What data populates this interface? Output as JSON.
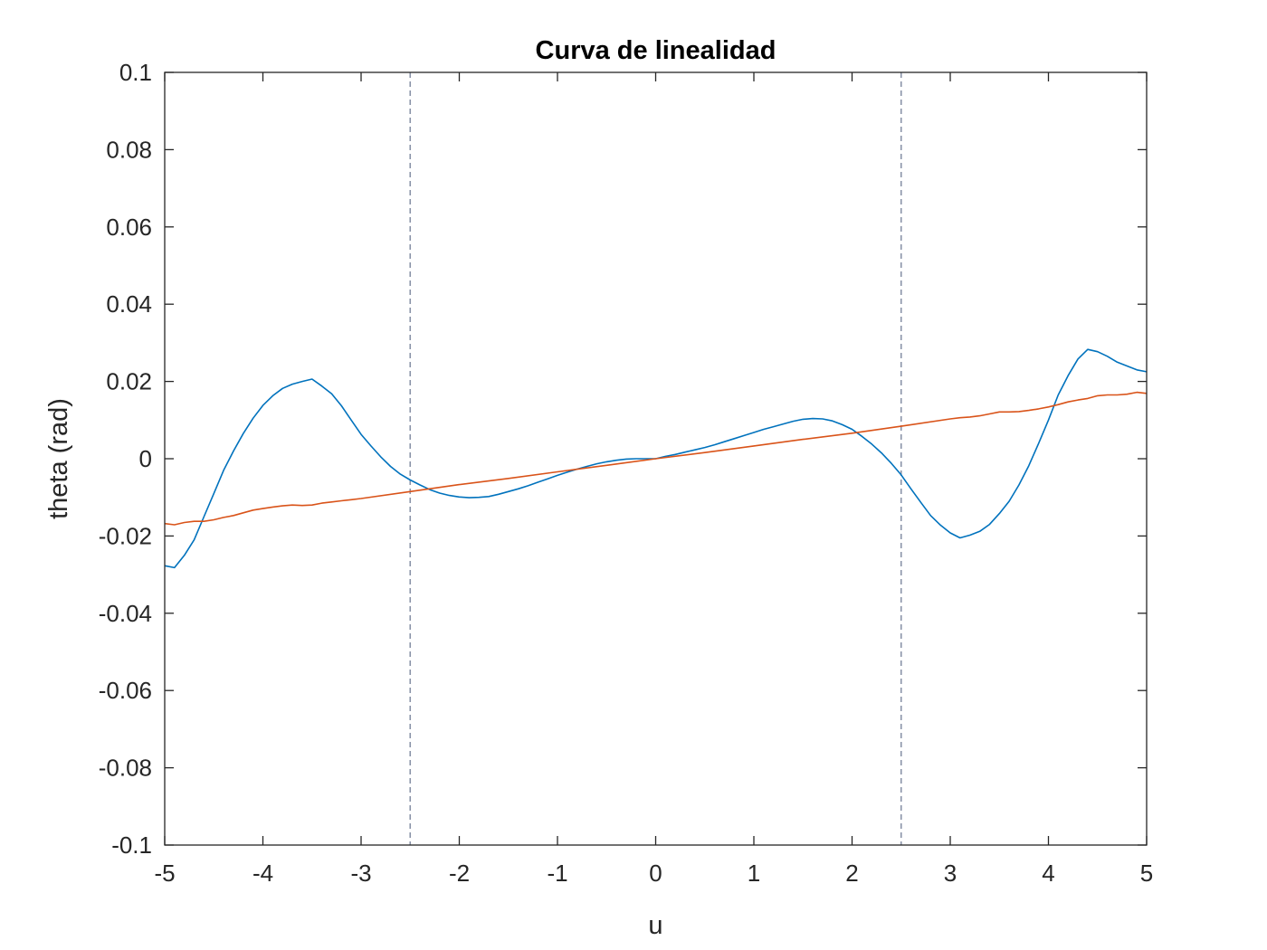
{
  "chart_data": {
    "type": "line",
    "title": "Curva de linealidad",
    "xlabel": "u",
    "ylabel": "theta (rad)",
    "xlim": [
      -5,
      5
    ],
    "ylim": [
      -0.1,
      0.1
    ],
    "xticks": [
      "-5",
      "-4",
      "-3",
      "-2",
      "-1",
      "0",
      "1",
      "2",
      "3",
      "4",
      "5"
    ],
    "yticks": [
      "-0.1",
      "-0.08",
      "-0.06",
      "-0.04",
      "-0.02",
      "0",
      "0.02",
      "0.04",
      "0.06",
      "0.08",
      "0.1"
    ],
    "grid": false,
    "vlines": [
      {
        "x": -2.5,
        "style": "dashed",
        "color": "#8a93a8"
      },
      {
        "x": 2.5,
        "style": "dashed",
        "color": "#8a93a8"
      }
    ],
    "series": [
      {
        "color": "#0072bd",
        "x": [
          -5,
          -4.9,
          -4.8,
          -4.7,
          -4.6,
          -4.5,
          -4.4,
          -4.3,
          -4.2,
          -4.1,
          -4.0,
          -3.9,
          -3.8,
          -3.7,
          -3.6,
          -3.5,
          -3.4,
          -3.3,
          -3.2,
          -3.1,
          -3.0,
          -2.9,
          -2.8,
          -2.7,
          -2.6,
          -2.5,
          -2.4,
          -2.3,
          -2.2,
          -2.1,
          -2.0,
          -1.9,
          -1.8,
          -1.7,
          -1.6,
          -1.5,
          -1.4,
          -1.3,
          -1.2,
          -1.1,
          -1.0,
          -0.9,
          -0.8,
          -0.7,
          -0.6,
          -0.5,
          -0.4,
          -0.3,
          -0.2,
          -0.1,
          0.0,
          0.1,
          0.2,
          0.3,
          0.4,
          0.5,
          0.6,
          0.7,
          0.8,
          0.9,
          1.0,
          1.1,
          1.2,
          1.3,
          1.4,
          1.5,
          1.6,
          1.7,
          1.8,
          1.9,
          2.0,
          2.1,
          2.2,
          2.3,
          2.4,
          2.5,
          2.6,
          2.7,
          2.8,
          2.9,
          3.0,
          3.1,
          3.2,
          3.3,
          3.4,
          3.5,
          3.6,
          3.7,
          3.8,
          3.9,
          4.0,
          4.1,
          4.2,
          4.3,
          4.4,
          4.5,
          4.6,
          4.7,
          4.8,
          4.9,
          5.0
        ],
        "y": [
          -0.0277,
          -0.0282,
          -0.025,
          -0.021,
          -0.015,
          -0.009,
          -0.003,
          0.002,
          0.0065,
          0.0105,
          0.0138,
          0.0163,
          0.0182,
          0.0193,
          0.02,
          0.0206,
          0.0188,
          0.0168,
          0.0137,
          0.01,
          0.0063,
          0.0033,
          0.0005,
          -0.002,
          -0.004,
          -0.0055,
          -0.0068,
          -0.008,
          -0.0089,
          -0.0095,
          -0.0099,
          -0.0101,
          -0.01,
          -0.0098,
          -0.0092,
          -0.0085,
          -0.0078,
          -0.007,
          -0.0061,
          -0.0052,
          -0.0043,
          -0.0035,
          -0.0027,
          -0.002,
          -0.0013,
          -0.0008,
          -0.0004,
          -0.0001,
          0.0,
          0.0,
          0.0,
          0.0006,
          0.0011,
          0.0017,
          0.0023,
          0.0029,
          0.0036,
          0.0044,
          0.0052,
          0.006,
          0.0068,
          0.0076,
          0.0083,
          0.009,
          0.0097,
          0.0102,
          0.0104,
          0.0103,
          0.0098,
          0.0088,
          0.0076,
          0.0058,
          0.0038,
          0.0015,
          -0.0012,
          -0.0042,
          -0.0078,
          -0.0113,
          -0.0147,
          -0.0172,
          -0.0192,
          -0.0205,
          -0.0198,
          -0.0188,
          -0.017,
          -0.0142,
          -0.011,
          -0.0068,
          -0.0018,
          0.004,
          0.01,
          0.0165,
          0.0215,
          0.0258,
          0.0283,
          0.0277,
          0.0265,
          0.025,
          0.024,
          0.023,
          0.0225
        ],
        "x_end_trim": 5.0
      },
      {
        "color": "#d95319",
        "x": [
          -5,
          -4.9,
          -4.8,
          -4.7,
          -4.6,
          -4.5,
          -4.4,
          -4.3,
          -4.2,
          -4.1,
          -4.0,
          -3.9,
          -3.8,
          -3.7,
          -3.6,
          -3.5,
          -3.4,
          -3.3,
          -3.2,
          -3.1,
          -3.0,
          -2.5,
          -2.0,
          -1.5,
          -1.0,
          -0.5,
          0.0,
          0.5,
          1.0,
          1.5,
          2.0,
          2.5,
          3.0,
          3.1,
          3.2,
          3.3,
          3.4,
          3.5,
          3.6,
          3.7,
          3.8,
          3.9,
          4.0,
          4.1,
          4.2,
          4.3,
          4.4,
          4.5,
          4.6,
          4.7,
          4.8,
          4.9,
          5.0
        ],
        "y": [
          -0.0168,
          -0.0171,
          -0.0165,
          -0.0162,
          -0.0162,
          -0.0158,
          -0.0152,
          -0.0147,
          -0.014,
          -0.0133,
          -0.0129,
          -0.0125,
          -0.0122,
          -0.012,
          -0.0121,
          -0.012,
          -0.0115,
          -0.0112,
          -0.0109,
          -0.0106,
          -0.0103,
          -0.0085,
          -0.0067,
          -0.0051,
          -0.0034,
          -0.0017,
          0.0,
          0.0016,
          0.0033,
          0.005,
          0.0066,
          0.0084,
          0.0103,
          0.0106,
          0.0108,
          0.0111,
          0.0116,
          0.0121,
          0.0121,
          0.0122,
          0.0125,
          0.0129,
          0.0134,
          0.014,
          0.0147,
          0.0152,
          0.0156,
          0.0163,
          0.0165,
          0.0165,
          0.0167,
          0.0172,
          0.0169
        ]
      }
    ]
  }
}
